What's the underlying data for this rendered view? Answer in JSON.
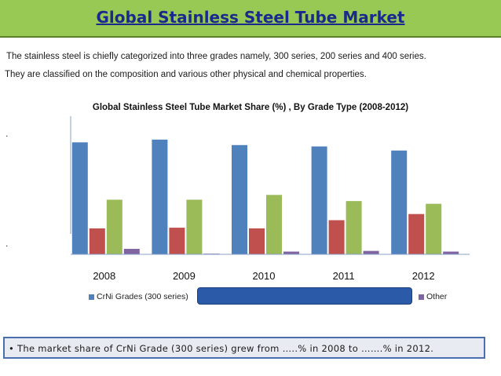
{
  "header": {
    "title": "Global Stainless Steel Tube Market"
  },
  "intro": {
    "line1": "The stainless steel is chiefly categorized into three grades namely, 300 series, 200 series and 400 series.",
    "line2": "They are classified on the composition and various other physical and chemical properties."
  },
  "bullets": {
    "dot1": ".",
    "dot2": "."
  },
  "chart_data": {
    "type": "bar",
    "title": "Global Stainless Steel Tube Market Share (%) , By Grade Type (2008-2012)",
    "xlabel": "",
    "ylabel": "",
    "categories": [
      "2008",
      "2009",
      "2010",
      "2011",
      "2012"
    ],
    "ylim": [
      0,
      100
    ],
    "grid": false,
    "legend_position": "bottom",
    "series": [
      {
        "name": "CrNi Grades (300 series)",
        "color": "#4f81bd",
        "values": [
          82,
          84,
          80,
          79,
          76
        ]
      },
      {
        "name": "",
        "color": "#c0504d",
        "values": [
          19,
          19.5,
          19,
          25,
          29.5
        ]
      },
      {
        "name": "",
        "color": "#9bbb59",
        "values": [
          40,
          40,
          43.5,
          39,
          37
        ]
      },
      {
        "name": "Other",
        "color": "#8064a2",
        "values": [
          4,
          0.5,
          2,
          2.5,
          2
        ]
      }
    ]
  },
  "footer": {
    "text": "• The market share of CrNi Grade (300 series) grew from …..% in 2008 to …….% in 2012."
  }
}
